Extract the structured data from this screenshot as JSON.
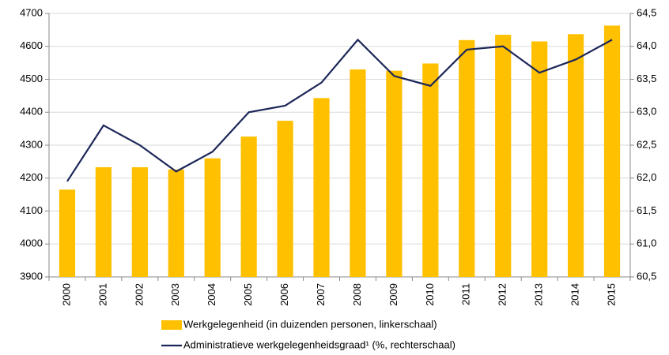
{
  "chart_data": {
    "type": "bar",
    "categories": [
      "2000",
      "2001",
      "2002",
      "2003",
      "2004",
      "2005",
      "2006",
      "2007",
      "2008",
      "2009",
      "2010",
      "2011",
      "2012",
      "2013",
      "2014",
      "2015"
    ],
    "series": [
      {
        "name": "Werkgelegenheid (in duizenden personen, linkerschaal)",
        "type": "bar",
        "color": "#ffc000",
        "values": [
          4165,
          4233,
          4233,
          4226,
          4260,
          4326,
          4374,
          4443,
          4530,
          4526,
          4548,
          4619,
          4635,
          4615,
          4637,
          4663
        ]
      },
      {
        "name": "Administratieve werkgelegenheidsgraad¹ (%, rechterschaal)",
        "type": "line",
        "axis": "y2",
        "color": "#1c2759",
        "values": [
          61.95,
          62.8,
          62.5,
          62.1,
          62.4,
          63.0,
          63.1,
          63.45,
          64.1,
          63.55,
          63.4,
          63.95,
          64.0,
          63.6,
          63.8,
          64.1
        ]
      }
    ],
    "ylim": [
      3900,
      4700
    ],
    "yticks": [
      3900,
      4000,
      4100,
      4200,
      4300,
      4400,
      4500,
      4600,
      4700
    ],
    "y2lim": [
      60.5,
      64.5
    ],
    "y2ticks": [
      {
        "value": 60.5,
        "label": "60,5"
      },
      {
        "value": 61,
        "label": "61,0"
      },
      {
        "value": 61.5,
        "label": "61,5"
      },
      {
        "value": 62,
        "label": "62,0"
      },
      {
        "value": 62.5,
        "label": "62,5"
      },
      {
        "value": 63,
        "label": "63,0"
      },
      {
        "value": 63.5,
        "label": "63,5"
      },
      {
        "value": 64,
        "label": "64,0"
      },
      {
        "value": 64.5,
        "label": "64,5"
      }
    ],
    "grid": true
  }
}
